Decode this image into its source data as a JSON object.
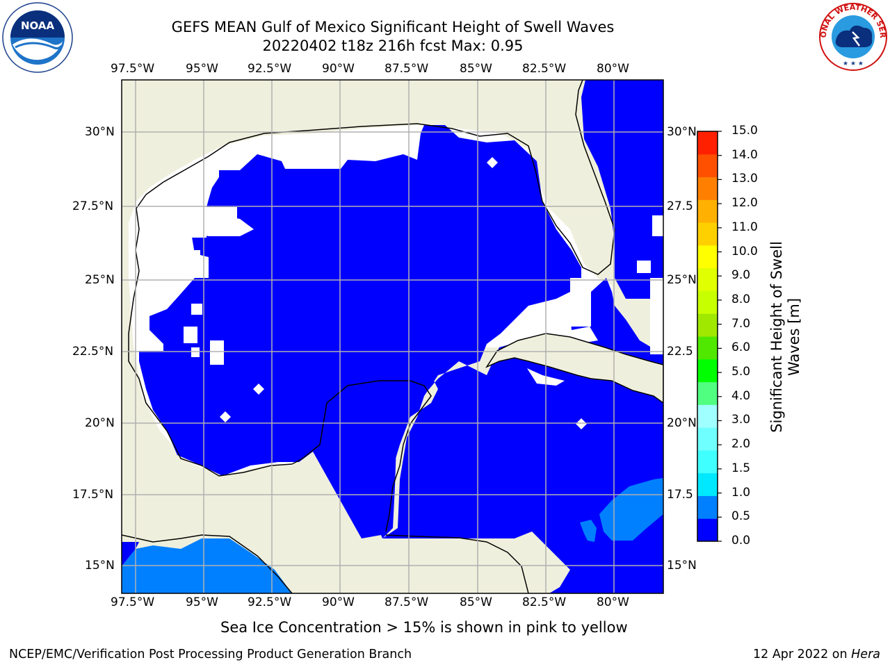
{
  "header": {
    "title_line1": "GEFS MEAN Gulf of Mexico Significant Height of Swell Waves",
    "title_line2": "20220402 t18z 216h fcst   Max: 0.95"
  },
  "logos": {
    "left": {
      "name": "noaa-logo",
      "text": "NOAA",
      "ring_text": "NATIONAL OCEANIC AND ATMOSPHERIC ADMINISTRATION · U.S. DEPARTMENT OF COMMERCE"
    },
    "right": {
      "name": "nws-logo",
      "ring_text": "NATIONAL WEATHER SERVICE"
    }
  },
  "map": {
    "lon_labels": [
      "97.5°W",
      "95°W",
      "92.5°W",
      "90°W",
      "87.5°W",
      "85°W",
      "82.5°W",
      "80°W"
    ],
    "lat_labels": [
      "30°N",
      "27.5°N",
      "25°N",
      "22.5°N",
      "20°N",
      "17.5°N",
      "15°N"
    ],
    "lat_labels_right": [
      "30°N",
      "27.5",
      "25°N",
      "22.5",
      "20°N",
      "17.5",
      "15°N"
    ],
    "colors": {
      "land": "#efefdd",
      "ocean_low": "#0000ff",
      "ocean_mid": "#0080ff",
      "gridline": "#b0b0b0"
    }
  },
  "colorbar": {
    "label_line1": "Significant Height of Swell",
    "label_line2": "Waves [m]",
    "ticks": [
      "0.0",
      "0.5",
      "1.0",
      "1.5",
      "2.0",
      "3.0",
      "4.0",
      "5.0",
      "6.0",
      "7.0",
      "8.0",
      "9.0",
      "10.0",
      "11.0",
      "12.0",
      "13.0",
      "14.0",
      "15.0"
    ],
    "colors": [
      "#0000ff",
      "#0080ff",
      "#00e8ff",
      "#40ffff",
      "#70ffff",
      "#a0ffff",
      "#50ff80",
      "#00ff00",
      "#50e800",
      "#a0e800",
      "#c8ff00",
      "#e0ff00",
      "#ffff00",
      "#ffd000",
      "#ffb000",
      "#ff8000",
      "#ff5000",
      "#ff2000"
    ]
  },
  "note": "Sea Ice Concentration > 15% is shown in pink to yellow",
  "footer": {
    "left": "NCEP/EMC/Verification Post Processing Product Generation Branch",
    "right_prefix": "12 Apr 2022 on ",
    "right_host": "Hera"
  }
}
